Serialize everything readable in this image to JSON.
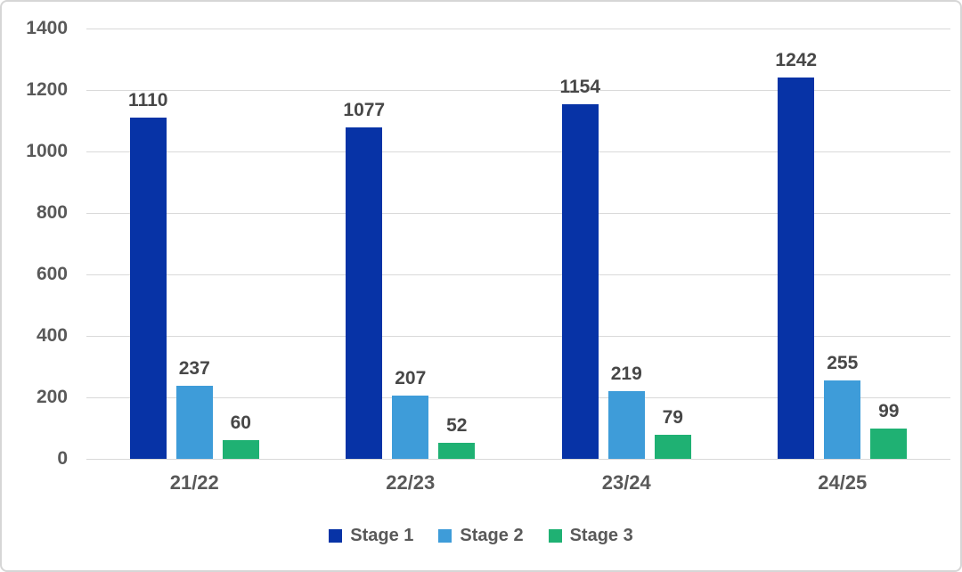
{
  "chart_data": {
    "type": "bar",
    "title": "",
    "xlabel": "",
    "ylabel": "",
    "categories": [
      "21/22",
      "22/23",
      "23/24",
      "24/25"
    ],
    "series": [
      {
        "name": "Stage 1",
        "color": "#0733a6",
        "values": [
          1110,
          1077,
          1154,
          1242
        ]
      },
      {
        "name": "Stage 2",
        "color": "#3e9cd9",
        "values": [
          237,
          207,
          219,
          255
        ]
      },
      {
        "name": "Stage 3",
        "color": "#1fb173",
        "values": [
          60,
          52,
          79,
          99
        ]
      }
    ],
    "data_labels_visible": true,
    "ylim": [
      0,
      1400
    ],
    "yticks": [
      0,
      200,
      400,
      600,
      800,
      1000,
      1200,
      1400
    ],
    "grid": "horizontal",
    "gridline_color": "#d9d9d9",
    "legend_position": "bottom",
    "text_color": "#595959",
    "value_label_color": "#474747"
  }
}
